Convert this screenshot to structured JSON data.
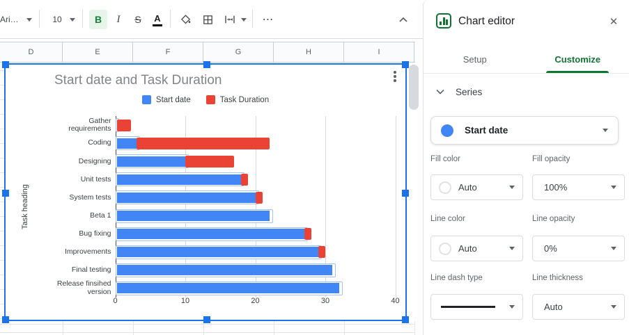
{
  "toolbar": {
    "font_family": "Ari…",
    "font_size": "10",
    "bold_label": "B",
    "italic_label": "I",
    "strikethrough_label": "S",
    "text_color_label": "A",
    "more_label": "⋯"
  },
  "sheet": {
    "column_headers": [
      "D",
      "E",
      "F",
      "G",
      "H",
      "I"
    ]
  },
  "chart_data": {
    "type": "bar",
    "orientation": "horizontal",
    "stacked": true,
    "title": "Start date and Task Duration",
    "categories": [
      "Gather requirements",
      "Coding",
      "Designing",
      "Unit tests",
      "System tests",
      "Beta 1",
      "Bug fixing",
      "Improvements",
      "Final testing",
      "Release finsihed version"
    ],
    "series": [
      {
        "name": "Start date",
        "color": "#4285F4",
        "values": [
          0,
          3,
          10,
          18,
          20,
          22,
          27,
          29,
          31,
          32
        ]
      },
      {
        "name": "Task Duration",
        "color": "#EA4335",
        "values": [
          2,
          19,
          7,
          1,
          1,
          0,
          1,
          1,
          0,
          0
        ]
      }
    ],
    "xlabel": "",
    "ylabel": "Task heading",
    "xlim": [
      0,
      40
    ],
    "x_ticks": [
      0,
      10,
      20,
      30,
      40
    ],
    "legend_position": "top",
    "grid": "vertical-only"
  },
  "panel": {
    "title": "Chart editor",
    "close_label": "✕",
    "tabs": [
      {
        "label": "Setup"
      },
      {
        "label": "Customize"
      }
    ],
    "active_tab": "Customize",
    "section_label": "Series",
    "series_selector": {
      "value": "Start date",
      "dot_color": "#4285F4"
    },
    "fields": [
      {
        "label": "Fill color",
        "value": "Auto",
        "type": "color"
      },
      {
        "label": "Fill opacity",
        "value": "100%",
        "type": "select"
      },
      {
        "label": "Line color",
        "value": "Auto",
        "type": "color"
      },
      {
        "label": "Line opacity",
        "value": "0%",
        "type": "select"
      },
      {
        "label": "Line dash type",
        "value": "solid-line",
        "type": "dash"
      },
      {
        "label": "Line thickness",
        "value": "Auto",
        "type": "select"
      }
    ]
  },
  "colors": {
    "selection": "#1a73e8",
    "accent_green": "#137333",
    "bar_outline": "#a5c2f3"
  }
}
